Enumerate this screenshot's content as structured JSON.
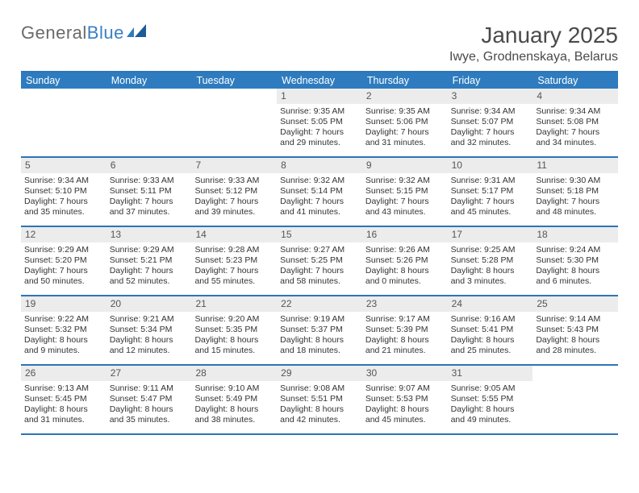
{
  "brand": {
    "part1": "General",
    "part2": "Blue"
  },
  "title": "January 2025",
  "location": "Iwye, Grodnenskaya, Belarus",
  "colors": {
    "header_bg": "#2e7cbf",
    "rule": "#2e74b5",
    "daynum_bg": "#ececec",
    "page_bg": "#ffffff"
  },
  "weekdays": [
    "Sunday",
    "Monday",
    "Tuesday",
    "Wednesday",
    "Thursday",
    "Friday",
    "Saturday"
  ],
  "weeks": [
    [
      {
        "day": "",
        "lines": [
          "",
          "",
          "",
          ""
        ]
      },
      {
        "day": "",
        "lines": [
          "",
          "",
          "",
          ""
        ]
      },
      {
        "day": "",
        "lines": [
          "",
          "",
          "",
          ""
        ]
      },
      {
        "day": "1",
        "lines": [
          "Sunrise: 9:35 AM",
          "Sunset: 5:05 PM",
          "Daylight: 7 hours",
          "and 29 minutes."
        ]
      },
      {
        "day": "2",
        "lines": [
          "Sunrise: 9:35 AM",
          "Sunset: 5:06 PM",
          "Daylight: 7 hours",
          "and 31 minutes."
        ]
      },
      {
        "day": "3",
        "lines": [
          "Sunrise: 9:34 AM",
          "Sunset: 5:07 PM",
          "Daylight: 7 hours",
          "and 32 minutes."
        ]
      },
      {
        "day": "4",
        "lines": [
          "Sunrise: 9:34 AM",
          "Sunset: 5:08 PM",
          "Daylight: 7 hours",
          "and 34 minutes."
        ]
      }
    ],
    [
      {
        "day": "5",
        "lines": [
          "Sunrise: 9:34 AM",
          "Sunset: 5:10 PM",
          "Daylight: 7 hours",
          "and 35 minutes."
        ]
      },
      {
        "day": "6",
        "lines": [
          "Sunrise: 9:33 AM",
          "Sunset: 5:11 PM",
          "Daylight: 7 hours",
          "and 37 minutes."
        ]
      },
      {
        "day": "7",
        "lines": [
          "Sunrise: 9:33 AM",
          "Sunset: 5:12 PM",
          "Daylight: 7 hours",
          "and 39 minutes."
        ]
      },
      {
        "day": "8",
        "lines": [
          "Sunrise: 9:32 AM",
          "Sunset: 5:14 PM",
          "Daylight: 7 hours",
          "and 41 minutes."
        ]
      },
      {
        "day": "9",
        "lines": [
          "Sunrise: 9:32 AM",
          "Sunset: 5:15 PM",
          "Daylight: 7 hours",
          "and 43 minutes."
        ]
      },
      {
        "day": "10",
        "lines": [
          "Sunrise: 9:31 AM",
          "Sunset: 5:17 PM",
          "Daylight: 7 hours",
          "and 45 minutes."
        ]
      },
      {
        "day": "11",
        "lines": [
          "Sunrise: 9:30 AM",
          "Sunset: 5:18 PM",
          "Daylight: 7 hours",
          "and 48 minutes."
        ]
      }
    ],
    [
      {
        "day": "12",
        "lines": [
          "Sunrise: 9:29 AM",
          "Sunset: 5:20 PM",
          "Daylight: 7 hours",
          "and 50 minutes."
        ]
      },
      {
        "day": "13",
        "lines": [
          "Sunrise: 9:29 AM",
          "Sunset: 5:21 PM",
          "Daylight: 7 hours",
          "and 52 minutes."
        ]
      },
      {
        "day": "14",
        "lines": [
          "Sunrise: 9:28 AM",
          "Sunset: 5:23 PM",
          "Daylight: 7 hours",
          "and 55 minutes."
        ]
      },
      {
        "day": "15",
        "lines": [
          "Sunrise: 9:27 AM",
          "Sunset: 5:25 PM",
          "Daylight: 7 hours",
          "and 58 minutes."
        ]
      },
      {
        "day": "16",
        "lines": [
          "Sunrise: 9:26 AM",
          "Sunset: 5:26 PM",
          "Daylight: 8 hours",
          "and 0 minutes."
        ]
      },
      {
        "day": "17",
        "lines": [
          "Sunrise: 9:25 AM",
          "Sunset: 5:28 PM",
          "Daylight: 8 hours",
          "and 3 minutes."
        ]
      },
      {
        "day": "18",
        "lines": [
          "Sunrise: 9:24 AM",
          "Sunset: 5:30 PM",
          "Daylight: 8 hours",
          "and 6 minutes."
        ]
      }
    ],
    [
      {
        "day": "19",
        "lines": [
          "Sunrise: 9:22 AM",
          "Sunset: 5:32 PM",
          "Daylight: 8 hours",
          "and 9 minutes."
        ]
      },
      {
        "day": "20",
        "lines": [
          "Sunrise: 9:21 AM",
          "Sunset: 5:34 PM",
          "Daylight: 8 hours",
          "and 12 minutes."
        ]
      },
      {
        "day": "21",
        "lines": [
          "Sunrise: 9:20 AM",
          "Sunset: 5:35 PM",
          "Daylight: 8 hours",
          "and 15 minutes."
        ]
      },
      {
        "day": "22",
        "lines": [
          "Sunrise: 9:19 AM",
          "Sunset: 5:37 PM",
          "Daylight: 8 hours",
          "and 18 minutes."
        ]
      },
      {
        "day": "23",
        "lines": [
          "Sunrise: 9:17 AM",
          "Sunset: 5:39 PM",
          "Daylight: 8 hours",
          "and 21 minutes."
        ]
      },
      {
        "day": "24",
        "lines": [
          "Sunrise: 9:16 AM",
          "Sunset: 5:41 PM",
          "Daylight: 8 hours",
          "and 25 minutes."
        ]
      },
      {
        "day": "25",
        "lines": [
          "Sunrise: 9:14 AM",
          "Sunset: 5:43 PM",
          "Daylight: 8 hours",
          "and 28 minutes."
        ]
      }
    ],
    [
      {
        "day": "26",
        "lines": [
          "Sunrise: 9:13 AM",
          "Sunset: 5:45 PM",
          "Daylight: 8 hours",
          "and 31 minutes."
        ]
      },
      {
        "day": "27",
        "lines": [
          "Sunrise: 9:11 AM",
          "Sunset: 5:47 PM",
          "Daylight: 8 hours",
          "and 35 minutes."
        ]
      },
      {
        "day": "28",
        "lines": [
          "Sunrise: 9:10 AM",
          "Sunset: 5:49 PM",
          "Daylight: 8 hours",
          "and 38 minutes."
        ]
      },
      {
        "day": "29",
        "lines": [
          "Sunrise: 9:08 AM",
          "Sunset: 5:51 PM",
          "Daylight: 8 hours",
          "and 42 minutes."
        ]
      },
      {
        "day": "30",
        "lines": [
          "Sunrise: 9:07 AM",
          "Sunset: 5:53 PM",
          "Daylight: 8 hours",
          "and 45 minutes."
        ]
      },
      {
        "day": "31",
        "lines": [
          "Sunrise: 9:05 AM",
          "Sunset: 5:55 PM",
          "Daylight: 8 hours",
          "and 49 minutes."
        ]
      },
      {
        "day": "",
        "lines": [
          "",
          "",
          "",
          ""
        ]
      }
    ]
  ]
}
